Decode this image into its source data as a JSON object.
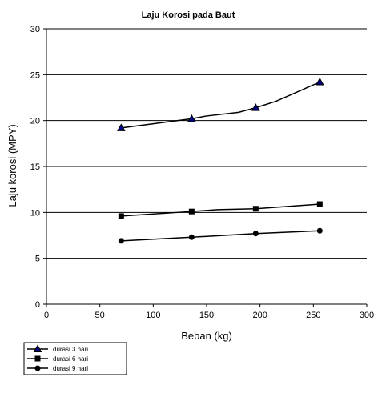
{
  "chart_data": {
    "type": "line",
    "title": "Laju Korosi pada Baut",
    "xlabel": "Beban (kg)",
    "ylabel": "Laju korosi (MPY)",
    "xlim": [
      0,
      300
    ],
    "ylim": [
      0,
      30
    ],
    "xticks": [
      0,
      50,
      100,
      150,
      200,
      250,
      300
    ],
    "yticks": [
      0,
      5,
      10,
      15,
      20,
      25,
      30
    ],
    "grid": "horizontal",
    "legend_position": "bottom-left",
    "series": [
      {
        "name": "durasi 3 hari",
        "marker": "triangle",
        "x": [
          70,
          136,
          196,
          256
        ],
        "y": [
          19.2,
          20.2,
          21.4,
          24.2
        ],
        "curve": [
          [
            70,
            19.2
          ],
          [
            136,
            20.2
          ],
          [
            150,
            20.5
          ],
          [
            180,
            20.9
          ],
          [
            196,
            21.4
          ],
          [
            215,
            22.1
          ],
          [
            256,
            24.2
          ]
        ]
      },
      {
        "name": "durasi 6 hari",
        "marker": "square",
        "x": [
          70,
          136,
          196,
          256
        ],
        "y": [
          9.6,
          10.1,
          10.4,
          10.9
        ],
        "curve": [
          [
            70,
            9.6
          ],
          [
            136,
            10.1
          ],
          [
            160,
            10.3
          ],
          [
            196,
            10.4
          ],
          [
            256,
            10.9
          ]
        ]
      },
      {
        "name": "durasi 9 hari",
        "marker": "circle",
        "x": [
          70,
          136,
          196,
          256
        ],
        "y": [
          6.9,
          7.3,
          7.7,
          8.0
        ],
        "curve": [
          [
            70,
            6.9
          ],
          [
            136,
            7.3
          ],
          [
            196,
            7.7
          ],
          [
            256,
            8.0
          ]
        ]
      }
    ],
    "colors": {
      "line": "#000000",
      "grid": "#000000",
      "background": "#ffffff"
    }
  }
}
